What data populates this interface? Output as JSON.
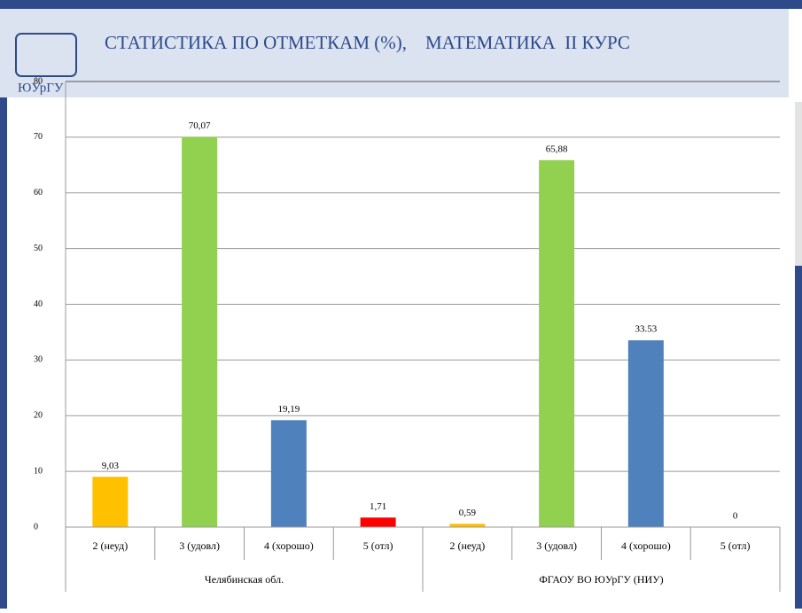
{
  "logo": "ЮУрГУ",
  "chart_data": {
    "type": "bar",
    "title": "СТАТИСТИКА ПО ОТМЕТКАМ (%),    МАТЕМАТИКА  II КУРС",
    "colors": [
      "#ffc000",
      "#92d050",
      "#4f81bd",
      "#ff0000"
    ],
    "groups": [
      {
        "name": "Челябинская обл.",
        "categories": [
          "2 (неуд)",
          "3 (удовл)",
          "4 (хорошо)",
          "5 (отл)"
        ],
        "values": [
          9.03,
          70.07,
          19.19,
          1.71
        ],
        "value_labels": [
          "9,03",
          "70,07",
          "19,19",
          "1,71"
        ]
      },
      {
        "name": "ФГАОУ ВО ЮУрГУ (НИУ)",
        "categories": [
          "2 (неуд)",
          "3 (удовл)",
          "4 (хорошо)",
          "5 (отл)"
        ],
        "values": [
          0.59,
          65.88,
          33.53,
          0
        ],
        "value_labels": [
          "0,59",
          "65,88",
          "33.53",
          "0"
        ]
      }
    ],
    "ylim": [
      0,
      80
    ],
    "yticks": [
      0,
      10,
      20,
      30,
      40,
      50,
      60,
      70,
      80
    ],
    "grid": true
  }
}
